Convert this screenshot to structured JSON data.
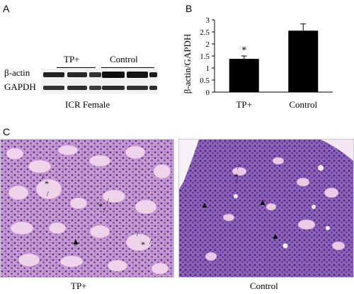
{
  "panels": {
    "a": {
      "letter": "A",
      "group_labels": [
        "TP+",
        "Control"
      ],
      "row_labels": [
        "β-actin",
        "GAPDH"
      ],
      "caption": "ICR Female"
    },
    "b": {
      "letter": "B",
      "significance_marker": "*"
    },
    "c": {
      "letter": "C",
      "captions": [
        "TP+",
        "Control"
      ],
      "markers": [
        "*",
        "▲",
        "/"
      ],
      "colors": {
        "tissue_light": "#e9d7ee",
        "tissue_dark": "#6b3f97",
        "nuclei": "#4a2a8a",
        "lumen": "#f7f0f6"
      }
    }
  },
  "chart_data": {
    "type": "bar",
    "categories": [
      "TP+",
      "Control"
    ],
    "values": [
      1.38,
      2.55
    ],
    "errors": [
      0.12,
      0.28
    ],
    "ylabel": "β-actin/GAPDH",
    "ylim": [
      0,
      3
    ],
    "yticks": [
      0,
      0.5,
      1,
      1.5,
      2,
      2.5,
      3
    ],
    "ytick_labels": [
      "0",
      "0.5",
      "1",
      "1.5",
      "2",
      "2.5",
      "3"
    ],
    "bar_color": "#000000",
    "annotations": [
      {
        "category": "TP+",
        "text": "*"
      }
    ]
  }
}
